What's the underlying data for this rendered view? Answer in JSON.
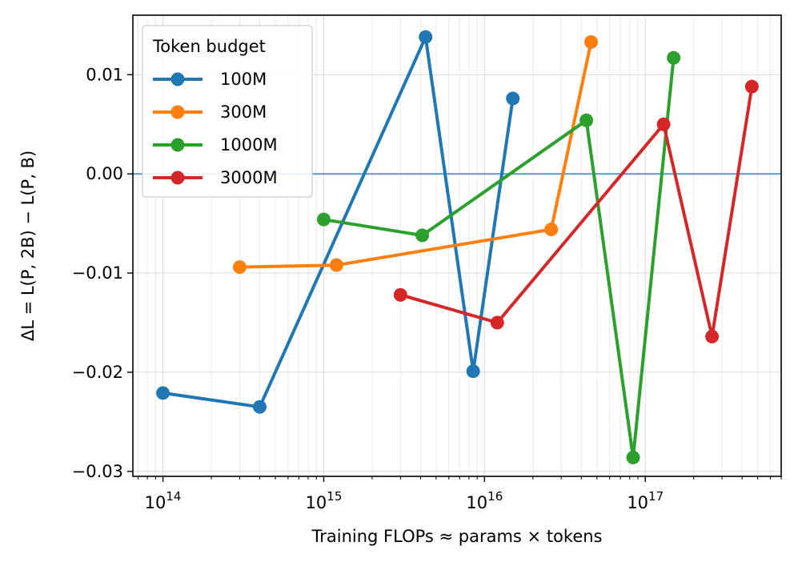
{
  "chart_data": {
    "type": "line",
    "xscale": "log",
    "xlim": [
      65000000000000.0,
      7e+17
    ],
    "ylim": [
      -0.0305,
      0.016
    ],
    "xlabel": "Training FLOPs ≈ params × tokens",
    "ylabel": "ΔL = L(P, 2B) − L(P, B)",
    "x_ticks": [
      {
        "value": 100000000000000.0,
        "base": "10",
        "exp": "14"
      },
      {
        "value": 1000000000000000.0,
        "base": "10",
        "exp": "15"
      },
      {
        "value": 1e+16,
        "base": "10",
        "exp": "16"
      },
      {
        "value": 1e+17,
        "base": "10",
        "exp": "17"
      }
    ],
    "y_ticks": [
      {
        "value": 0.01,
        "label": "0.01"
      },
      {
        "value": 0.0,
        "label": "0.00"
      },
      {
        "value": -0.01,
        "label": "−0.01"
      },
      {
        "value": -0.02,
        "label": "−0.02"
      },
      {
        "value": -0.03,
        "label": "−0.03"
      }
    ],
    "reference_line": {
      "y": 0,
      "color": "#1f77b4"
    },
    "grid": true,
    "legend": {
      "title": "Token budget",
      "position": "top-left"
    },
    "series": [
      {
        "name": "100M",
        "color": "#1f77b4",
        "points": [
          [
            100000000000000.0,
            -0.0221
          ],
          [
            400000000000000.0,
            -0.0235
          ],
          [
            4300000000000000.0,
            0.0138
          ],
          [
            8500000000000000.0,
            -0.0199
          ],
          [
            1.5e+16,
            0.0076
          ]
        ]
      },
      {
        "name": "300M",
        "color": "#ff7f0e",
        "points": [
          [
            300000000000000.0,
            -0.0094
          ],
          [
            1200000000000000.0,
            -0.0092
          ],
          [
            2.6e+16,
            -0.0056
          ],
          [
            4.6e+16,
            0.0133
          ]
        ]
      },
      {
        "name": "1000M",
        "color": "#2ca02c",
        "points": [
          [
            1000000000000000.0,
            -0.0046
          ],
          [
            4100000000000000.0,
            -0.0062
          ],
          [
            4.3e+16,
            0.0054
          ],
          [
            8.4e+16,
            -0.0286
          ],
          [
            1.5e+17,
            0.0117
          ]
        ]
      },
      {
        "name": "3000M",
        "color": "#d62728",
        "points": [
          [
            3000000000000000.0,
            -0.0122
          ],
          [
            1.2e+16,
            -0.015
          ],
          [
            1.3e+17,
            0.005
          ],
          [
            2.6e+17,
            -0.0164
          ],
          [
            4.6e+17,
            0.0088
          ]
        ]
      }
    ]
  }
}
